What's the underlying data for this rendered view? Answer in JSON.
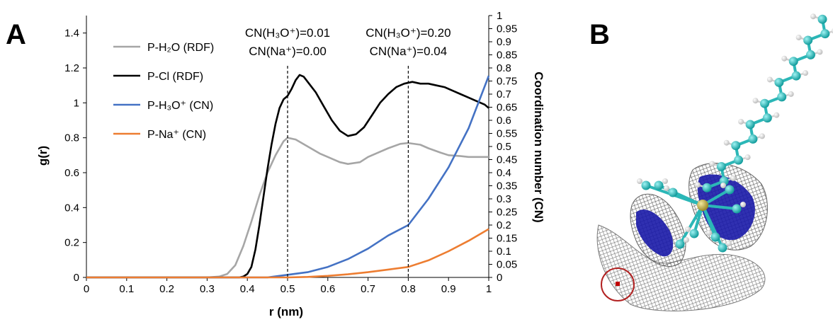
{
  "panel_a_label": "A",
  "panel_b_label": "B",
  "chart_data": {
    "type": "line",
    "xlabel": "r (nm)",
    "ylabel": "g(r)",
    "y2label": "Coordination number (CN)",
    "xlim": [
      0,
      1
    ],
    "ylim": [
      0,
      1.5
    ],
    "y2lim": [
      0,
      1
    ],
    "xticks": [
      "0",
      "0.1",
      "0.2",
      "0.3",
      "0.4",
      "0.5",
      "0.6",
      "0.7",
      "0.8",
      "0.9",
      "1"
    ],
    "yticks": [
      "0",
      "0.2",
      "0.4",
      "0.6",
      "0.8",
      "1",
      "1.2",
      "1.4"
    ],
    "y2ticks": [
      "0",
      "0.05",
      "0.1",
      "0.15",
      "0.2",
      "0.25",
      "0.3",
      "0.35",
      "0.4",
      "0.45",
      "0.5",
      "0.55",
      "0.6",
      "0.65",
      "0.7",
      "0.75",
      "0.8",
      "0.85",
      "0.9",
      "0.95",
      "1"
    ],
    "legend_position": "top-left",
    "series": [
      {
        "name": "P-H₂O (RDF)",
        "axis": "left",
        "color": "#a6a6a6",
        "x": [
          0,
          0.3,
          0.33,
          0.35,
          0.37,
          0.39,
          0.41,
          0.43,
          0.45,
          0.47,
          0.49,
          0.5,
          0.52,
          0.55,
          0.58,
          0.6,
          0.63,
          0.65,
          0.68,
          0.7,
          0.73,
          0.75,
          0.78,
          0.8,
          0.83,
          0.85,
          0.88,
          0.9,
          0.93,
          0.95,
          0.98,
          1
        ],
        "y": [
          0,
          0,
          0.005,
          0.02,
          0.07,
          0.18,
          0.32,
          0.47,
          0.6,
          0.7,
          0.78,
          0.8,
          0.79,
          0.75,
          0.71,
          0.69,
          0.66,
          0.65,
          0.66,
          0.69,
          0.72,
          0.74,
          0.765,
          0.77,
          0.76,
          0.74,
          0.715,
          0.7,
          0.695,
          0.69,
          0.69,
          0.69
        ]
      },
      {
        "name": "P-Cl (RDF)",
        "axis": "left",
        "color": "#000000",
        "x": [
          0,
          0.38,
          0.39,
          0.4,
          0.41,
          0.42,
          0.43,
          0.44,
          0.45,
          0.46,
          0.47,
          0.48,
          0.49,
          0.5,
          0.51,
          0.52,
          0.53,
          0.54,
          0.55,
          0.57,
          0.59,
          0.61,
          0.63,
          0.65,
          0.67,
          0.69,
          0.71,
          0.73,
          0.75,
          0.77,
          0.79,
          0.81,
          0.83,
          0.85,
          0.87,
          0.89,
          0.91,
          0.93,
          0.95,
          0.97,
          0.99,
          1
        ],
        "y": [
          0,
          0,
          0.005,
          0.02,
          0.06,
          0.16,
          0.3,
          0.46,
          0.62,
          0.76,
          0.88,
          0.97,
          1.02,
          1.04,
          1.08,
          1.13,
          1.16,
          1.15,
          1.12,
          1.06,
          0.98,
          0.9,
          0.84,
          0.81,
          0.82,
          0.86,
          0.93,
          1.0,
          1.05,
          1.09,
          1.11,
          1.12,
          1.11,
          1.11,
          1.1,
          1.09,
          1.07,
          1.05,
          1.03,
          1.01,
          0.99,
          0.97
        ]
      },
      {
        "name": "P-H₃O⁺ (CN)",
        "axis": "right",
        "color": "#4472c4",
        "x": [
          0,
          0.45,
          0.5,
          0.55,
          0.6,
          0.65,
          0.7,
          0.75,
          0.8,
          0.85,
          0.9,
          0.95,
          1
        ],
        "y": [
          0,
          0,
          0.01,
          0.02,
          0.04,
          0.07,
          0.11,
          0.16,
          0.2,
          0.3,
          0.42,
          0.57,
          0.77
        ]
      },
      {
        "name": "P-Na⁺ (CN)",
        "axis": "right",
        "color": "#ed7d31",
        "x": [
          0,
          0.5,
          0.55,
          0.6,
          0.65,
          0.7,
          0.75,
          0.8,
          0.85,
          0.9,
          0.95,
          1
        ],
        "y": [
          0,
          0,
          0.002,
          0.006,
          0.012,
          0.02,
          0.03,
          0.04,
          0.065,
          0.1,
          0.14,
          0.185
        ]
      }
    ],
    "annotations": [
      {
        "x": 0.5,
        "line1": "CN(H₃O⁺)=0.01",
        "line2": "CN(Na⁺)=0.00"
      },
      {
        "x": 0.8,
        "line1": "CN(H₃O⁺)=0.20",
        "line2": "CN(Na⁺)=0.04"
      }
    ]
  }
}
